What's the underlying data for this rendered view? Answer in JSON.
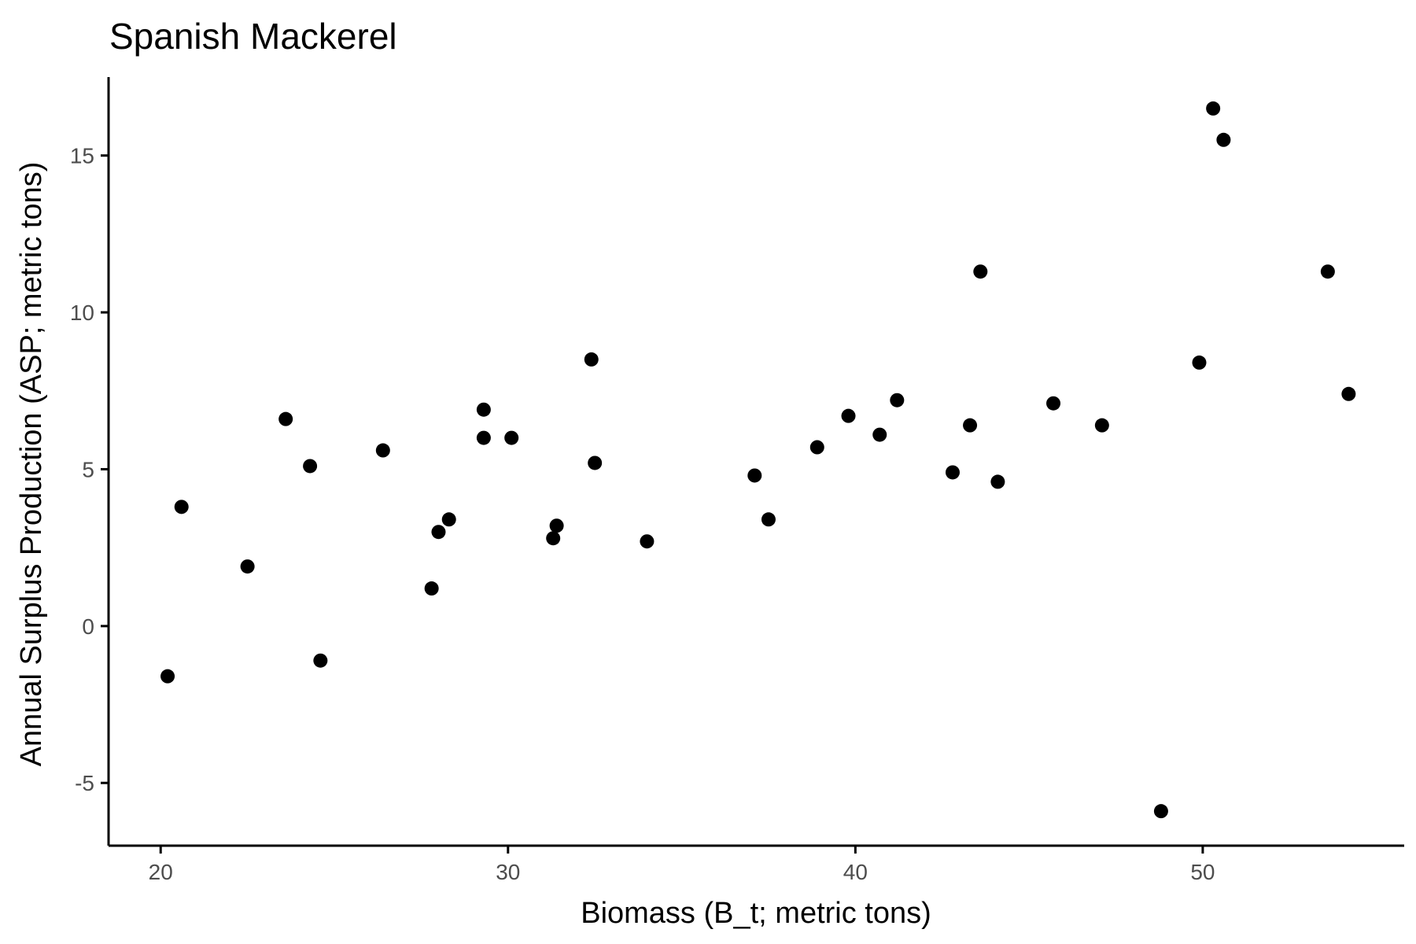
{
  "chart_data": {
    "type": "scatter",
    "title": "Spanish Mackerel",
    "xlabel": "Biomass (B_t; metric tons)",
    "ylabel": "Annual Surplus Production (ASP; metric tons)",
    "xlim": [
      18.5,
      55.8
    ],
    "ylim": [
      -7,
      17.5
    ],
    "xticks": [
      20,
      30,
      40,
      50
    ],
    "yticks": [
      -5,
      0,
      5,
      10,
      15
    ],
    "grid": false,
    "point_color": "#000000",
    "points": [
      {
        "x": 20.2,
        "y": -1.6
      },
      {
        "x": 20.6,
        "y": 3.8
      },
      {
        "x": 22.5,
        "y": 1.9
      },
      {
        "x": 23.6,
        "y": 6.6
      },
      {
        "x": 24.3,
        "y": 5.1
      },
      {
        "x": 24.6,
        "y": -1.1
      },
      {
        "x": 26.4,
        "y": 5.6
      },
      {
        "x": 27.8,
        "y": 1.2
      },
      {
        "x": 28.0,
        "y": 3.0
      },
      {
        "x": 28.3,
        "y": 3.4
      },
      {
        "x": 29.3,
        "y": 6.9
      },
      {
        "x": 29.3,
        "y": 6.0
      },
      {
        "x": 30.1,
        "y": 6.0
      },
      {
        "x": 31.3,
        "y": 2.8
      },
      {
        "x": 31.4,
        "y": 3.2
      },
      {
        "x": 32.4,
        "y": 8.5
      },
      {
        "x": 32.5,
        "y": 5.2
      },
      {
        "x": 34.0,
        "y": 2.7
      },
      {
        "x": 37.1,
        "y": 4.8
      },
      {
        "x": 37.5,
        "y": 3.4
      },
      {
        "x": 38.9,
        "y": 5.7
      },
      {
        "x": 39.8,
        "y": 6.7
      },
      {
        "x": 40.7,
        "y": 6.1
      },
      {
        "x": 41.2,
        "y": 7.2
      },
      {
        "x": 42.8,
        "y": 4.9
      },
      {
        "x": 43.3,
        "y": 6.4
      },
      {
        "x": 43.6,
        "y": 11.3
      },
      {
        "x": 44.1,
        "y": 4.6
      },
      {
        "x": 45.7,
        "y": 7.1
      },
      {
        "x": 47.1,
        "y": 6.4
      },
      {
        "x": 48.8,
        "y": -5.9
      },
      {
        "x": 49.9,
        "y": 8.4
      },
      {
        "x": 50.3,
        "y": 16.5
      },
      {
        "x": 50.6,
        "y": 15.5
      },
      {
        "x": 53.6,
        "y": 11.3
      },
      {
        "x": 54.2,
        "y": 7.4
      }
    ]
  }
}
